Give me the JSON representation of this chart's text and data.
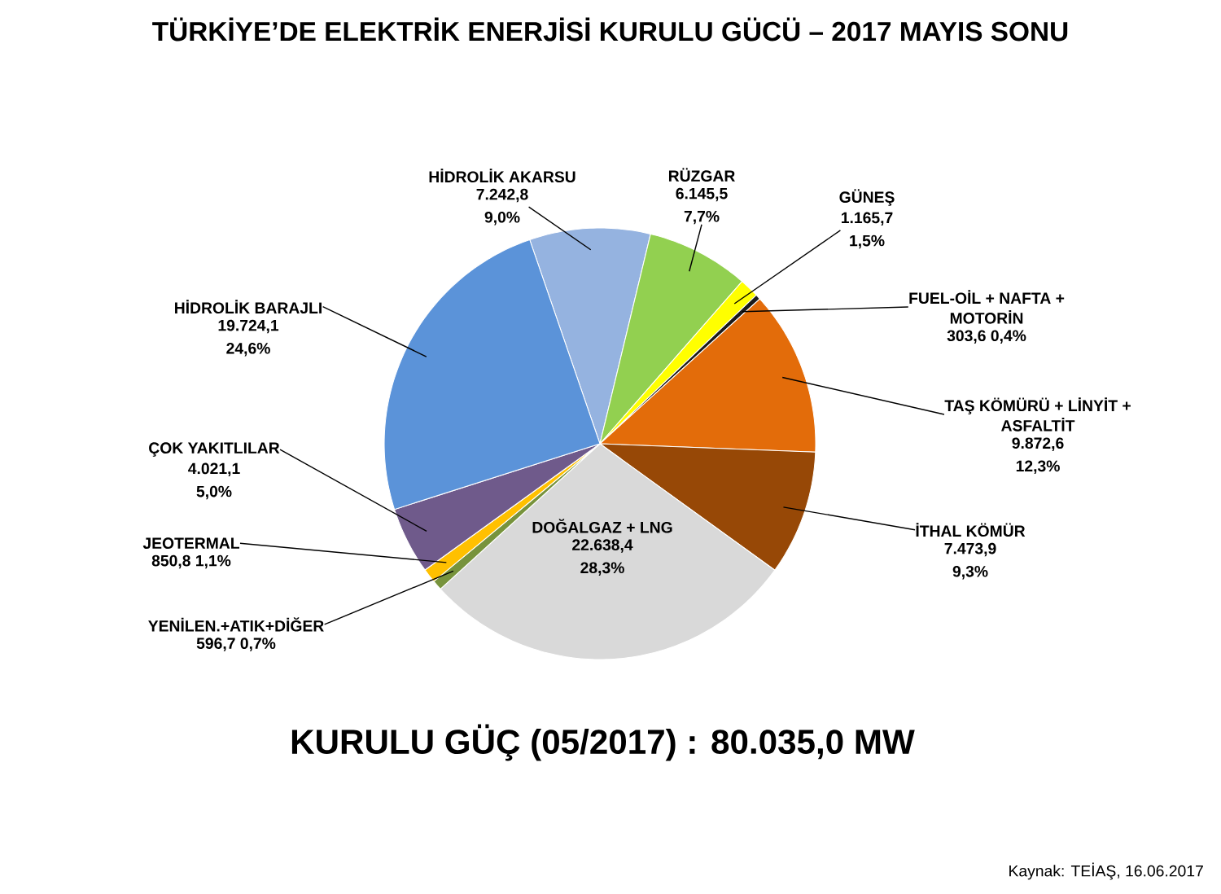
{
  "chart_data": {
    "type": "pie",
    "title": "TÜRKİYE’DE ELEKTRİK ENERJİSİ KURULU GÜCÜ – 2017 MAYIS SONU",
    "categories": [
      "HİDROLİK AKARSU",
      "RÜZGAR",
      "GÜNEŞ",
      "FUEL-OİL + NAFTA + MOTORİN",
      "TAŞ KÖMÜRÜ + LİNYİT + ASFALTİT",
      "İTHAL KÖMÜR",
      "DOĞALGAZ + LNG",
      "YENİLEN.+ATIK+DİĞER",
      "JEOTERMAL",
      "ÇOK YAKITLILAR",
      "HİDROLİK BARAJLI"
    ],
    "values": [
      7242.8,
      6145.5,
      1165.7,
      303.6,
      9872.6,
      7473.9,
      22638.4,
      596.7,
      850.8,
      4021.1,
      19724.1
    ],
    "value_labels": [
      "7.242,8 9,0%",
      "6.145,5 7,7%",
      "1.165,7 1,5%",
      "303,6 0,4%",
      "9.872,6 12,3%",
      "7.473,9 9,3%",
      "22.638,4 28,3%",
      "596,7 0,7%",
      "850,8 1,1%",
      "4.021,1 5,0%",
      "19.724,1 24,6%"
    ],
    "colors": [
      "#95b3e0",
      "#92d050",
      "#ffff00",
      "#1a1a1a",
      "#e36c0a",
      "#974806",
      "#d9d9d9",
      "#77933c",
      "#ffc000",
      "#6f5a8b",
      "#5b93d9"
    ],
    "annotations": [
      "KURULU GÜÇ (05/2017) : 80.035,0 MW",
      "Kaynak: TEİAŞ, 16.06.2017"
    ]
  }
}
